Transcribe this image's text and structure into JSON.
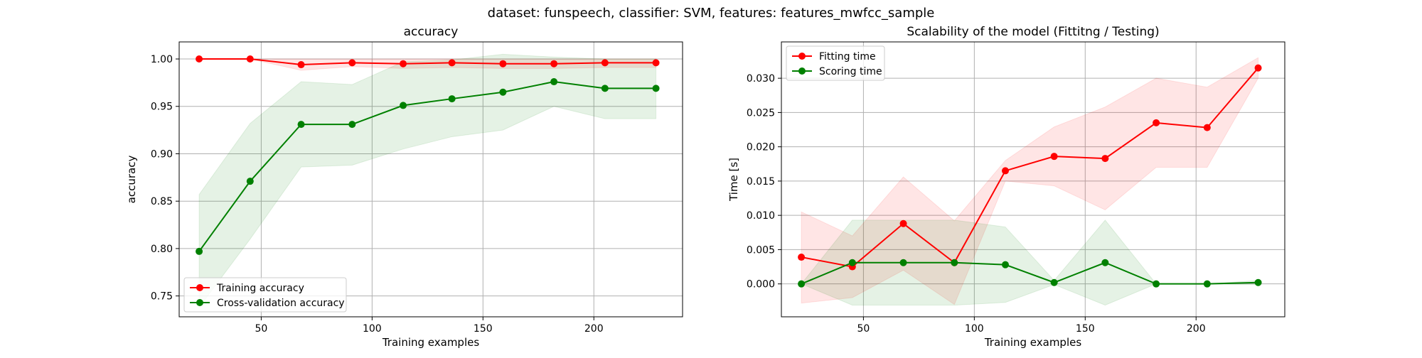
{
  "figure": {
    "suptitle": "dataset: funspeech, classifier: SVM, features: features_mwfcc_sample"
  },
  "colors": {
    "train": "#ff0000",
    "cv": "#008000",
    "grid": "#b0b0b0"
  },
  "chart_data": [
    {
      "type": "line",
      "title": "accuracy",
      "xlabel": "Training examples",
      "ylabel": "accuracy",
      "grid": true,
      "legend": "lower left",
      "xlim": [
        13,
        240
      ],
      "ylim": [
        0.728,
        1.018
      ],
      "xticks": [
        50,
        100,
        150,
        200
      ],
      "yticks": [
        0.75,
        0.8,
        0.85,
        0.9,
        0.95,
        1.0
      ],
      "ytick_labels": [
        "0.75",
        "0.80",
        "0.85",
        "0.90",
        "0.95",
        "1.00"
      ],
      "x": [
        22,
        45,
        68,
        91,
        114,
        136,
        159,
        182,
        205,
        228
      ],
      "series": [
        {
          "name": "Training accuracy",
          "color": "#ff0000",
          "values": [
            1.0,
            1.0,
            0.994,
            0.996,
            0.995,
            0.996,
            0.995,
            0.995,
            0.996,
            0.996
          ],
          "lower": [
            1.0,
            1.0,
            0.988,
            0.992,
            0.99,
            0.991,
            0.99,
            0.99,
            0.991,
            0.991
          ],
          "upper": [
            1.0,
            1.0,
            1.0,
            1.0,
            1.0,
            1.0,
            1.0,
            1.0,
            1.0,
            1.0
          ]
        },
        {
          "name": "Cross-validation accuracy",
          "color": "#008000",
          "values": [
            0.797,
            0.871,
            0.931,
            0.931,
            0.951,
            0.958,
            0.965,
            0.976,
            0.969,
            0.969
          ],
          "lower": [
            0.738,
            0.81,
            0.886,
            0.888,
            0.905,
            0.918,
            0.925,
            0.95,
            0.937,
            0.937
          ],
          "upper": [
            0.857,
            0.932,
            0.976,
            0.973,
            0.997,
            0.999,
            1.005,
            1.002,
            1.0,
            1.0
          ]
        }
      ]
    },
    {
      "type": "line",
      "title": "Scalability of the model (Fittitng / Testing)",
      "xlabel": "Training examples",
      "ylabel": "Time [s]",
      "grid": true,
      "legend": "upper left",
      "xlim": [
        13,
        240
      ],
      "ylim": [
        -0.0048,
        0.0353
      ],
      "xticks": [
        50,
        100,
        150,
        200
      ],
      "yticks": [
        0.0,
        0.005,
        0.01,
        0.015,
        0.02,
        0.025,
        0.03
      ],
      "ytick_labels": [
        "0.000",
        "0.005",
        "0.010",
        "0.015",
        "0.020",
        "0.025",
        "0.030"
      ],
      "x": [
        22,
        45,
        68,
        91,
        114,
        136,
        159,
        182,
        205,
        228
      ],
      "series": [
        {
          "name": "Fitting time",
          "color": "#ff0000",
          "values": [
            0.0039,
            0.0025,
            0.0088,
            0.0031,
            0.0165,
            0.0186,
            0.0183,
            0.0235,
            0.0228,
            0.0315
          ],
          "lower": [
            -0.0028,
            -0.002,
            0.002,
            -0.003,
            0.015,
            0.0143,
            0.0108,
            0.017,
            0.017,
            0.03
          ],
          "upper": [
            0.0105,
            0.007,
            0.0156,
            0.0092,
            0.018,
            0.0229,
            0.0258,
            0.03,
            0.0287,
            0.033
          ]
        },
        {
          "name": "Scoring time",
          "color": "#008000",
          "values": [
            0.0,
            0.0031,
            0.0031,
            0.0031,
            0.0028,
            0.0002,
            0.0031,
            0.0,
            0.0,
            0.0002
          ],
          "lower": [
            0.0,
            -0.0031,
            -0.0031,
            -0.0031,
            -0.0027,
            -0.0001,
            -0.0031,
            0.0,
            0.0,
            -0.0001
          ],
          "upper": [
            0.0,
            0.0093,
            0.0093,
            0.0093,
            0.0083,
            0.0005,
            0.0093,
            0.0,
            0.0,
            0.0005
          ]
        }
      ]
    }
  ]
}
